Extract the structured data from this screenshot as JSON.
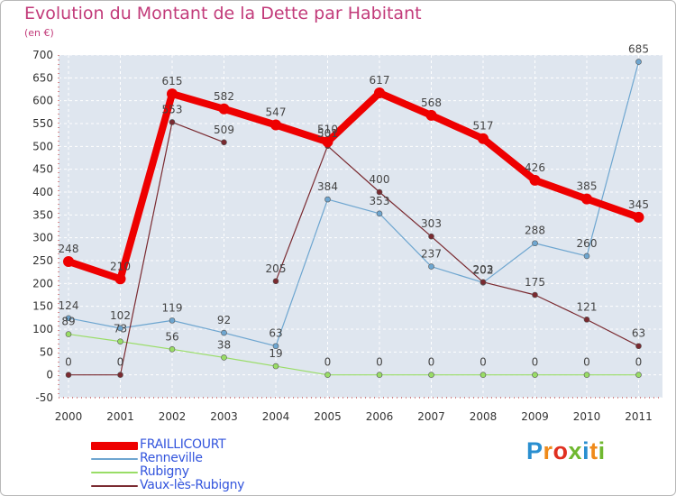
{
  "title": "Evolution du Montant de la Dette par Habitant",
  "unit": "(en €)",
  "brand": {
    "letters": [
      "P",
      "r",
      "o",
      "x",
      "i",
      "t",
      "i"
    ],
    "colors": [
      "#2a8fd0",
      "#ef8a1a",
      "#e03020",
      "#70b830",
      "#2a8fd0",
      "#ef8a1a",
      "#70b830"
    ]
  },
  "chart_data": {
    "type": "line",
    "x": [
      "2000",
      "2001",
      "2002",
      "2003",
      "2004",
      "2005",
      "2006",
      "2007",
      "2008",
      "2009",
      "2010",
      "2011"
    ],
    "yticks": [
      -50,
      0,
      50,
      100,
      150,
      200,
      250,
      300,
      350,
      400,
      450,
      500,
      550,
      600,
      650,
      700
    ],
    "ylim": [
      -50,
      700
    ],
    "grid": true,
    "legend_position": "bottom-left",
    "series": [
      {
        "name": "FRAILLICOURT",
        "color": "#ee0000",
        "values": [
          248,
          210,
          615,
          582,
          547,
          510,
          617,
          568,
          517,
          426,
          385,
          345
        ],
        "labels": [
          "248",
          "210",
          "615",
          "582",
          "547",
          "510",
          "617",
          "568",
          "517",
          "426",
          "385",
          "345"
        ]
      },
      {
        "name": "Renneville",
        "color": "#6ea6d0",
        "values": [
          124,
          102,
          119,
          92,
          63,
          384,
          353,
          237,
          202,
          288,
          260,
          685
        ],
        "labels": [
          "124",
          "102",
          "119",
          "92",
          "63",
          "384",
          "353",
          "237",
          "202",
          "288",
          "260",
          "685"
        ]
      },
      {
        "name": "Rubigny",
        "color": "#99dd66",
        "values": [
          89,
          73,
          56,
          38,
          19,
          0,
          0,
          0,
          0,
          0,
          0,
          0
        ],
        "labels": [
          "89",
          "73",
          "56",
          "38",
          "19",
          "0",
          "0",
          "0",
          "0",
          "0",
          "0",
          "0"
        ]
      },
      {
        "name": "Vaux-lès-Rubigny",
        "color": "#7a2a30",
        "values": [
          0,
          0,
          553,
          509,
          205,
          501,
          400,
          303,
          203,
          175,
          121,
          63
        ],
        "labels": [
          "0",
          "0",
          "553",
          "509",
          "205",
          "501",
          "400",
          "303",
          "203",
          "175",
          "121",
          "63"
        ],
        "segments_connected": [
          true,
          true,
          true,
          false,
          true,
          true,
          true,
          true,
          true,
          true,
          true
        ]
      }
    ]
  }
}
